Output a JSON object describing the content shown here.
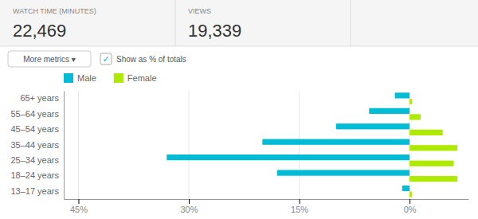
{
  "chart_data": {
    "type": "bar",
    "orientation": "horizontal",
    "categories": [
      "13–17 years",
      "18–24 years",
      "25–34 years",
      "35–44 years",
      "45–54 years",
      "55–64 years",
      "65+ years"
    ],
    "series": [
      {
        "name": "Male",
        "color": "#00BCD4",
        "values": [
          1.0,
          18.0,
          33.0,
          20.0,
          10.0,
          5.5,
          2.0
        ]
      },
      {
        "name": "Female",
        "color": "#AEEA00",
        "values": [
          -0.3,
          -6.5,
          -6.0,
          -6.5,
          -4.5,
          -1.5,
          -0.3
        ]
      }
    ],
    "xlim": [
      47,
      -8
    ],
    "xticks": [
      {
        "value": 45,
        "label": "45%"
      },
      {
        "value": 30,
        "label": "30%"
      },
      {
        "value": 15,
        "label": "15%"
      },
      {
        "value": 0,
        "label": "0%"
      }
    ],
    "grid": true,
    "legend": "top",
    "annotations": [
      "WATCH TIME (MINUTES)",
      "22,469",
      "VIEWS",
      "19,339",
      "More metrics ▾",
      "✓",
      "Show as % of totals"
    ]
  }
}
